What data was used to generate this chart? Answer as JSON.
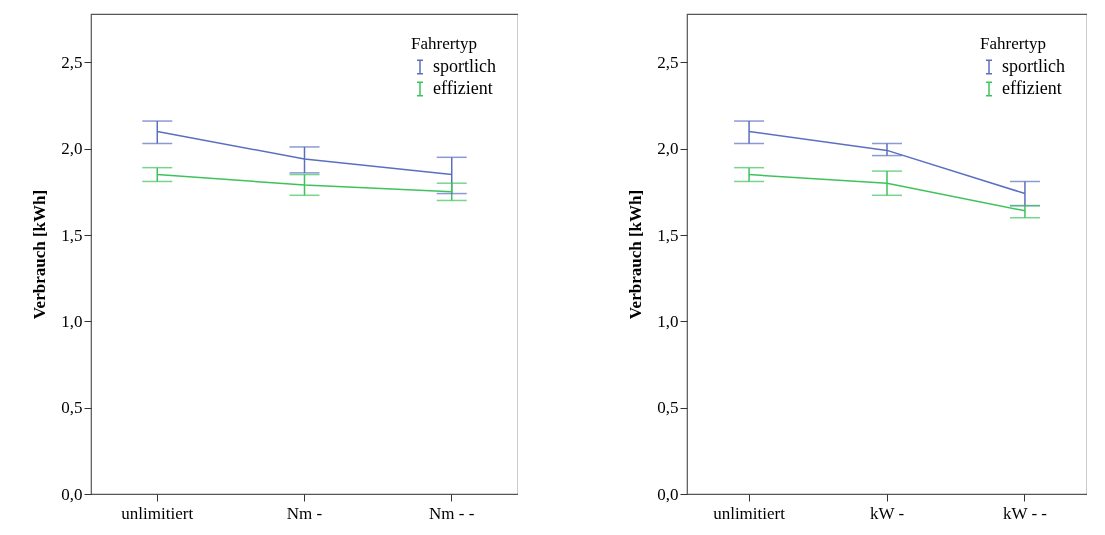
{
  "chart_data": [
    {
      "type": "line",
      "ylabel": "Verbrauch [kWh]",
      "legend_title": "Fahrertyp",
      "legend": "top right",
      "categories": [
        "unlimitiert",
        "Nm -",
        "Nm - -"
      ],
      "ylim": [
        0,
        2.78
      ],
      "yticks": [
        {
          "value": 0,
          "label": "0,0"
        },
        {
          "value": 0.5,
          "label": "0,5"
        },
        {
          "value": 1,
          "label": "1,0"
        },
        {
          "value": 1.5,
          "label": "1,5"
        },
        {
          "value": 2,
          "label": "2,0"
        },
        {
          "value": 2.5,
          "label": "2,5"
        }
      ],
      "series": [
        {
          "name": "sportlich",
          "color": "#5b6fc1",
          "values": [
            2.1,
            1.94,
            1.85
          ],
          "errors": [
            [
              2.03,
              2.16
            ],
            [
              1.86,
              2.01
            ],
            [
              1.74,
              1.95
            ]
          ]
        },
        {
          "name": "effizient",
          "color": "#3ec35c",
          "values": [
            1.85,
            1.79,
            1.75
          ],
          "errors": [
            [
              1.81,
              1.89
            ],
            [
              1.73,
              1.85
            ],
            [
              1.7,
              1.8
            ]
          ]
        }
      ]
    },
    {
      "type": "line",
      "ylabel": "Verbrauch [kWh]",
      "legend_title": "Fahrertyp",
      "legend": "top right",
      "categories": [
        "unlimitiert",
        "kW -",
        "kW - -"
      ],
      "ylim": [
        0,
        2.78
      ],
      "yticks": [
        {
          "value": 0,
          "label": "0,0"
        },
        {
          "value": 0.5,
          "label": "0,5"
        },
        {
          "value": 1,
          "label": "1,0"
        },
        {
          "value": 1.5,
          "label": "1,5"
        },
        {
          "value": 2,
          "label": "2,0"
        },
        {
          "value": 2.5,
          "label": "2,5"
        }
      ],
      "series": [
        {
          "name": "sportlich",
          "color": "#5b6fc1",
          "values": [
            2.1,
            1.99,
            1.74
          ],
          "errors": [
            [
              2.03,
              2.16
            ],
            [
              1.96,
              2.03
            ],
            [
              1.67,
              1.81
            ]
          ]
        },
        {
          "name": "effizient",
          "color": "#3ec35c",
          "values": [
            1.85,
            1.8,
            1.64
          ],
          "errors": [
            [
              1.81,
              1.89
            ],
            [
              1.73,
              1.87
            ],
            [
              1.6,
              1.67
            ]
          ]
        }
      ]
    }
  ]
}
